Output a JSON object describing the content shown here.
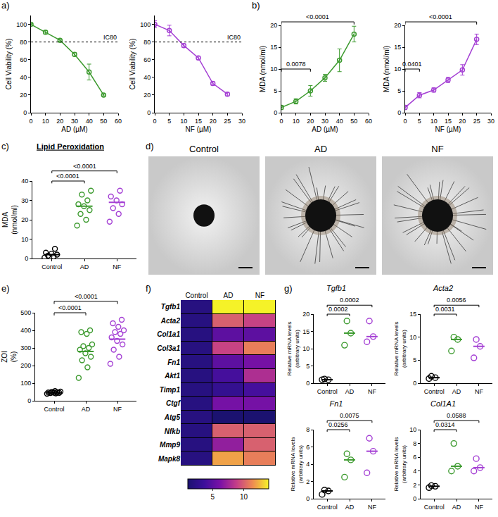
{
  "chart_data": [
    {
      "panel": "a)",
      "type": "line",
      "x_label": "AD (µM)",
      "y_label": "Cell Viability (%)",
      "x": [
        0,
        10,
        20,
        30,
        40,
        50
      ],
      "values": [
        100,
        91,
        82,
        66,
        46,
        20
      ],
      "errors": [
        1,
        2,
        1,
        2,
        9,
        1
      ],
      "color": "#3c9a2e",
      "marker": "circle-open",
      "xlim": [
        0,
        60
      ],
      "xticks": [
        0,
        10,
        20,
        30,
        40,
        50,
        60
      ],
      "ylim": [
        0,
        110
      ],
      "yticks": [
        0,
        20,
        40,
        60,
        80,
        100
      ],
      "threshold": {
        "value": 80,
        "label": "IC80"
      },
      "grid": false
    },
    {
      "type": "line",
      "x_label": "NF (µM)",
      "y_label": "Cell Viability (%)",
      "x": [
        0,
        5,
        10,
        15,
        20,
        25
      ],
      "values": [
        100,
        93,
        76,
        62,
        33,
        21
      ],
      "errors": [
        4,
        6,
        2,
        2,
        2,
        2
      ],
      "color": "#a43fd4",
      "marker": "circle-open",
      "xlim": [
        0,
        30
      ],
      "xticks": [
        0,
        5,
        10,
        15,
        20,
        25,
        30
      ],
      "ylim": [
        0,
        110
      ],
      "yticks": [
        0,
        20,
        40,
        60,
        80,
        100
      ],
      "threshold": {
        "value": 80,
        "label": "IC80"
      },
      "grid": false
    },
    {
      "panel": "b)",
      "type": "line",
      "x_label": "AD (µM)",
      "y_label": "MDA (nmol/ml)",
      "x": [
        0,
        10,
        20,
        30,
        40,
        50
      ],
      "values": [
        1.2,
        2.6,
        5,
        8,
        12,
        18
      ],
      "errors": [
        0.5,
        0.6,
        1.2,
        0.8,
        2.6,
        1.8
      ],
      "color": "#3c9a2e",
      "marker": "circle-open",
      "xlim": [
        0,
        60
      ],
      "xticks": [
        0,
        10,
        20,
        30,
        40,
        50,
        60
      ],
      "ylim": [
        0,
        20
      ],
      "yticks": [
        0,
        5,
        10,
        15,
        20
      ],
      "grid": false,
      "comparisons": [
        {
          "from": 0,
          "to": 20,
          "label": "0.0078"
        },
        {
          "from": 0,
          "to": 50,
          "label": "<0.0001"
        }
      ]
    },
    {
      "type": "line",
      "x_label": "NF (µM)",
      "y_label": "MDA (nmol/ml)",
      "x": [
        0,
        5,
        10,
        15,
        20,
        25
      ],
      "values": [
        1.2,
        4,
        5.2,
        7.5,
        9.8,
        16.8
      ],
      "errors": [
        0.5,
        0.6,
        0.5,
        0.6,
        1.2,
        1.2
      ],
      "color": "#a43fd4",
      "marker": "circle-open",
      "xlim": [
        0,
        30
      ],
      "xticks": [
        0,
        5,
        10,
        15,
        20,
        25,
        30
      ],
      "ylim": [
        0,
        20
      ],
      "yticks": [
        0,
        5,
        10,
        15,
        20
      ],
      "grid": false,
      "comparisons": [
        {
          "from": 0,
          "to": 5,
          "label": "0.0401"
        },
        {
          "from": 0,
          "to": 25,
          "label": "<0.0001"
        }
      ]
    },
    {
      "panel": "c)",
      "type": "dot",
      "title": "Lipid Peroxidation",
      "y_label": "MDA (nmol/ml)",
      "categories": [
        "Control",
        "AD",
        "NF"
      ],
      "groups": [
        [
          0.5,
          1,
          1.5,
          2,
          2.5,
          3,
          5
        ],
        [
          17,
          20,
          23,
          25,
          27,
          28,
          30,
          33,
          35
        ],
        [
          19,
          23,
          26,
          28,
          30,
          32,
          35
        ]
      ],
      "centers": [
        2,
        27,
        29
      ],
      "colors": [
        "#000000",
        "#3c9a2e",
        "#a43fd4"
      ],
      "marker": "circle-open",
      "ylim": [
        0,
        40
      ],
      "yticks": [
        0,
        10,
        20,
        30,
        40
      ],
      "grid": false,
      "comparisons": [
        {
          "from": 0,
          "to": 1,
          "label": "<0.0001"
        },
        {
          "from": 0,
          "to": 2,
          "label": "<0.0001"
        }
      ]
    },
    {
      "panel": "e)",
      "type": "dot",
      "y_label": "ZOI (%)",
      "categories": [
        "Control",
        "AD",
        "NF"
      ],
      "groups": [
        [
          40,
          42,
          44,
          45,
          46,
          47,
          48,
          50,
          52,
          55
        ],
        [
          130,
          190,
          230,
          250,
          270,
          290,
          300,
          310,
          320,
          380,
          390,
          400
        ],
        [
          210,
          250,
          290,
          320,
          340,
          360,
          380,
          390,
          400,
          420,
          440,
          460
        ]
      ],
      "centers": [
        45,
        280,
        350
      ],
      "colors": [
        "#000000",
        "#3c9a2e",
        "#a43fd4"
      ],
      "marker": "circle-open",
      "ylim": [
        0,
        500
      ],
      "yticks": [
        0,
        100,
        200,
        300,
        400,
        500
      ],
      "grid": false,
      "comparisons": [
        {
          "from": 0,
          "to": 1,
          "label": "<0.0001"
        },
        {
          "from": 0,
          "to": 2,
          "label": "<0.0001"
        }
      ]
    },
    {
      "panel": "f)",
      "type": "heatmap",
      "x": [
        "Control",
        "AD",
        "NF"
      ],
      "y": [
        "Tgfb1",
        "Acta2",
        "Col1a1",
        "Col3a1",
        "Fn1",
        "Akt1",
        "Timp1",
        "Ctgf",
        "Atg5",
        "Nfkb",
        "Mmp9",
        "Mapk8"
      ],
      "cells": [
        [
          2,
          14,
          14
        ],
        [
          2,
          10,
          9
        ],
        [
          2,
          5,
          5
        ],
        [
          2,
          9,
          11
        ],
        [
          2,
          5,
          6
        ],
        [
          2,
          4,
          8
        ],
        [
          2,
          3,
          4
        ],
        [
          2,
          6,
          6
        ],
        [
          2,
          1,
          1
        ],
        [
          2,
          10,
          10
        ],
        [
          2,
          7,
          10
        ],
        [
          2,
          12,
          11
        ]
      ],
      "zlim": [
        1,
        14
      ],
      "zticks": [
        5,
        10
      ]
    },
    {
      "panel": "g)",
      "type": "dot",
      "title": "Tgfb1",
      "y_label": "Relative mRNA levels (arbitrary units)",
      "categories": [
        "Control",
        "AD",
        "NF"
      ],
      "groups": [
        [
          1,
          1,
          1.2
        ],
        [
          11,
          14.5,
          18
        ],
        [
          12,
          13.5,
          18
        ]
      ],
      "centers": [
        1,
        14.5,
        13.5
      ],
      "colors": [
        "#000000",
        "#3c9a2e",
        "#a43fd4"
      ],
      "marker": "circle-open",
      "ylim": [
        0,
        20
      ],
      "yticks": [
        0,
        5,
        10,
        15,
        20
      ],
      "grid": false,
      "comparisons": [
        {
          "from": 0,
          "to": 1,
          "label": "0.0002"
        },
        {
          "from": 0,
          "to": 2,
          "label": "0.0002"
        }
      ]
    },
    {
      "type": "dot",
      "title": "Acta2",
      "y_label": "Relative mRNA levels (arbitrary units)",
      "categories": [
        "Control",
        "AD",
        "NF"
      ],
      "groups": [
        [
          1,
          1.2,
          1.5
        ],
        [
          7,
          9.5,
          10
        ],
        [
          5.5,
          8,
          9.5
        ]
      ],
      "centers": [
        1.2,
        9.5,
        8
      ],
      "colors": [
        "#000000",
        "#3c9a2e",
        "#a43fd4"
      ],
      "marker": "circle-open",
      "ylim": [
        0,
        15
      ],
      "yticks": [
        0,
        5,
        10,
        15
      ],
      "grid": false,
      "comparisons": [
        {
          "from": 0,
          "to": 1,
          "label": "0.0031"
        },
        {
          "from": 0,
          "to": 2,
          "label": "0.0056"
        }
      ]
    },
    {
      "type": "dot",
      "title": "Fn1",
      "y_label": "Relative mRNA levels (arbitrary units)",
      "categories": [
        "Control",
        "AD",
        "NF"
      ],
      "groups": [
        [
          0.5,
          0.9,
          1
        ],
        [
          2.5,
          4.5,
          5.2
        ],
        [
          3,
          5.5,
          7
        ]
      ],
      "centers": [
        0.9,
        4.5,
        5.5
      ],
      "colors": [
        "#000000",
        "#3c9a2e",
        "#a43fd4"
      ],
      "marker": "circle-open",
      "ylim": [
        0,
        8
      ],
      "yticks": [
        0,
        2,
        4,
        6,
        8
      ],
      "grid": false,
      "comparisons": [
        {
          "from": 0,
          "to": 1,
          "label": "0.0256"
        },
        {
          "from": 0,
          "to": 2,
          "label": "0.0075"
        }
      ]
    },
    {
      "type": "dot",
      "title": "Col1A1",
      "y_label": "Relative mRNA levels (arbitrary units)",
      "categories": [
        "Control",
        "AD",
        "NF"
      ],
      "groups": [
        [
          1.6,
          1.8,
          1.9
        ],
        [
          4,
          4.7,
          8
        ],
        [
          4,
          4.5,
          5.8
        ]
      ],
      "centers": [
        1.8,
        4.7,
        4.5
      ],
      "colors": [
        "#000000",
        "#3c9a2e",
        "#a43fd4"
      ],
      "marker": "circle-open",
      "ylim": [
        0,
        10
      ],
      "yticks": [
        0,
        2,
        4,
        6,
        8,
        10
      ],
      "grid": false,
      "comparisons": [
        {
          "from": 0,
          "to": 1,
          "label": "0.0314"
        },
        {
          "from": 0,
          "to": 2,
          "label": "0.0588"
        }
      ]
    }
  ],
  "image_panel": {
    "panel": "d)",
    "titles": [
      "Control",
      "AD",
      "NF"
    ]
  }
}
